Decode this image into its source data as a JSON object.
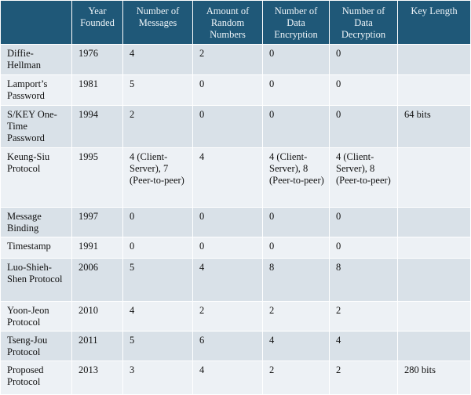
{
  "table": {
    "headers": {
      "name": "",
      "year": "Year Founded",
      "messages": "Number of Messages",
      "random": "Amount of Random Numbers",
      "encryption": "Number of Data Encryption",
      "decryption": "Number of Data Decryption",
      "key_length": "Key Length"
    },
    "rows": [
      {
        "name": "Diffie-Hellman",
        "year": "1976",
        "messages": "4",
        "random": "2",
        "encryption": "0",
        "decryption": "0",
        "key_length": ""
      },
      {
        "name": "Lamport’s Password",
        "year": "1981",
        "messages": "5",
        "random": "0",
        "encryption": "0",
        "decryption": "0",
        "key_length": ""
      },
      {
        "name": "S/KEY One-Time Password",
        "year": "1994",
        "messages": "2",
        "random": "0",
        "encryption": "0",
        "decryption": "0",
        "key_length": "64 bits"
      },
      {
        "name": "Keung-Siu Protocol",
        "year": "1995",
        "messages": "4 (Client-Server), 7 (Peer-to-peer)",
        "random": "4",
        "encryption": "4 (Client-Server), 8 (Peer-to-peer)",
        "decryption": "4 (Client-Server), 8 (Peer-to-peer)",
        "key_length": ""
      },
      {
        "name": "Message Binding",
        "year": "1997",
        "messages": "0",
        "random": "0",
        "encryption": "0",
        "decryption": "0",
        "key_length": ""
      },
      {
        "name": "Timestamp",
        "year": "1991",
        "messages": "0",
        "random": "0",
        "encryption": "0",
        "decryption": "0",
        "key_length": ""
      },
      {
        "name": "Luo-Shieh-Shen Protocol",
        "year": "2006",
        "messages": "5",
        "random": "4",
        "encryption": "8",
        "decryption": "8",
        "key_length": ""
      },
      {
        "name": "Yoon-Jeon Protocol",
        "year": "2010",
        "messages": "4",
        "random": "2",
        "encryption": "2",
        "decryption": "2",
        "key_length": ""
      },
      {
        "name": "Tseng-Jou Protocol",
        "year": "2011",
        "messages": "5",
        "random": "6",
        "encryption": "4",
        "decryption": "4",
        "key_length": ""
      },
      {
        "name": "Proposed Protocol",
        "year": "2013",
        "messages": "3",
        "random": "4",
        "encryption": "2",
        "decryption": "2",
        "key_length": "280 bits"
      }
    ]
  },
  "colors": {
    "header_bg": "#1f5878",
    "header_text": "#eef4f8",
    "row_band_dark": "#d9e1e8",
    "row_band_light": "#edf1f5",
    "grid_line": "#ffffff"
  }
}
